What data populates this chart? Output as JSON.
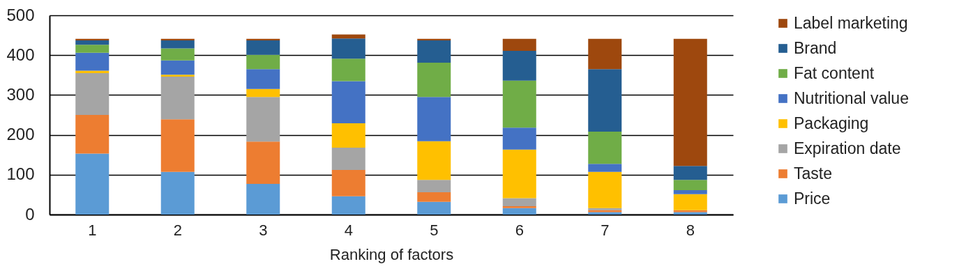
{
  "chart_data": {
    "type": "bar",
    "stacked": true,
    "xlabel": "Ranking of factors",
    "categories": [
      "1",
      "2",
      "3",
      "4",
      "5",
      "6",
      "7",
      "8"
    ],
    "ylim": [
      0,
      500
    ],
    "yticks": [
      0,
      100,
      200,
      300,
      400,
      500
    ],
    "grid": "y",
    "legend": "right",
    "series": [
      {
        "name": "Price",
        "color": "#5b9bd5",
        "values": [
          153,
          107,
          77,
          46,
          32,
          16,
          6,
          6
        ]
      },
      {
        "name": "Taste",
        "color": "#ed7d31",
        "values": [
          97,
          132,
          106,
          66,
          24,
          5,
          5,
          5
        ]
      },
      {
        "name": "Expiration date",
        "color": "#a5a5a5",
        "values": [
          105,
          107,
          112,
          56,
          31,
          20,
          5,
          0
        ]
      },
      {
        "name": "Packaging",
        "color": "#ffc000",
        "values": [
          6,
          5,
          20,
          61,
          97,
          122,
          91,
          40
        ]
      },
      {
        "name": "Nutritional value",
        "color": "#4472c4",
        "values": [
          45,
          36,
          50,
          106,
          111,
          55,
          20,
          10
        ]
      },
      {
        "name": "Fat content",
        "color": "#70ad47",
        "values": [
          20,
          30,
          36,
          56,
          86,
          118,
          81,
          26
        ]
      },
      {
        "name": "Brand",
        "color": "#255e91",
        "values": [
          11,
          20,
          36,
          51,
          56,
          75,
          157,
          35
        ]
      },
      {
        "name": "Label marketing",
        "color": "#9e480e",
        "values": [
          4,
          4,
          4,
          10,
          4,
          30,
          76,
          319
        ]
      }
    ]
  }
}
